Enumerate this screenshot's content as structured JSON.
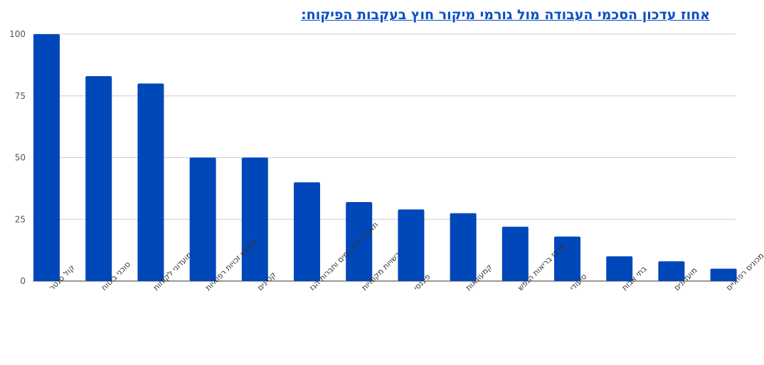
{
  "chart_data": {
    "type": "bar",
    "title": "אחוז עדכון הסכמי העבודה מול גורמי מיקור חוץ בעקבות הפיקוח:",
    "xlabel": "",
    "ylabel": "",
    "ylim": [
      0,
      100
    ],
    "yticks": [
      0,
      25,
      50,
      75,
      100
    ],
    "grid": true,
    "bar_color": "#0047ba",
    "categories": [
      "קול סנטר",
      "סוכני ביטוח",
      "מועדוני לקוחות",
      "מימוש זכויות רפואיות",
      "קטינים",
      "תאגידי ביוב ומים וחברות הגז",
      "רשויות מקומיות",
      "פיננסי",
      "קמעונאות",
      "מרכז בריאות הנפש",
      "סיעודי",
      "בתי אבות",
      "מועדונים",
      "מכונים רפואיים"
    ],
    "values": [
      100,
      83,
      80,
      50,
      50,
      40,
      32,
      29,
      27.5,
      22,
      18,
      10,
      8,
      5
    ]
  }
}
